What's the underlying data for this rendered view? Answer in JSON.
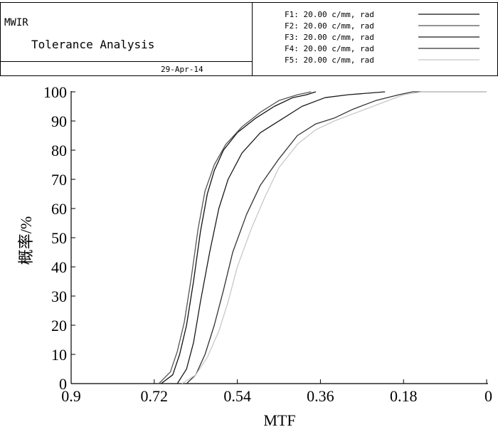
{
  "header": {
    "instrument": "MWIR",
    "title": "Tolerance Analysis",
    "date": "29-Apr-14"
  },
  "chart_data": {
    "type": "line",
    "xlabel": "MTF",
    "ylabel": "概率/%",
    "xlim": [
      0.9,
      0
    ],
    "ylim": [
      0,
      100
    ],
    "x_reversed": true,
    "x_ticks": [
      {
        "value": 0.9,
        "label": "0.9"
      },
      {
        "value": 0.72,
        "label": "0.72"
      },
      {
        "value": 0.54,
        "label": "0.54"
      },
      {
        "value": 0.36,
        "label": "0.36"
      },
      {
        "value": 0.18,
        "label": "0.18"
      },
      {
        "value": 0,
        "label": "0"
      }
    ],
    "y_ticks": [
      {
        "value": 0,
        "label": "0"
      },
      {
        "value": 10,
        "label": "10"
      },
      {
        "value": 20,
        "label": "20"
      },
      {
        "value": 30,
        "label": "30"
      },
      {
        "value": 40,
        "label": "40"
      },
      {
        "value": 50,
        "label": "50"
      },
      {
        "value": 60,
        "label": "60"
      },
      {
        "value": 70,
        "label": "70"
      },
      {
        "value": 80,
        "label": "80"
      },
      {
        "value": 90,
        "label": "90"
      },
      {
        "value": 100,
        "label": "100"
      }
    ],
    "grid": false,
    "legend_position": "top-right",
    "series": [
      {
        "name": "F1: 20.00 c/mm, rad",
        "color": "#111111",
        "points": [
          [
            0.705,
            0
          ],
          [
            0.68,
            3
          ],
          [
            0.665,
            10
          ],
          [
            0.65,
            20
          ],
          [
            0.635,
            35
          ],
          [
            0.62,
            52
          ],
          [
            0.605,
            65
          ],
          [
            0.59,
            73
          ],
          [
            0.57,
            80
          ],
          [
            0.54,
            86
          ],
          [
            0.5,
            91
          ],
          [
            0.46,
            95
          ],
          [
            0.42,
            98
          ],
          [
            0.39,
            99
          ],
          [
            0.37,
            100
          ]
        ]
      },
      {
        "name": "F2: 20.00 c/mm, rad",
        "color": "#555555",
        "points": [
          [
            0.71,
            0
          ],
          [
            0.685,
            4
          ],
          [
            0.67,
            11
          ],
          [
            0.655,
            21
          ],
          [
            0.64,
            36
          ],
          [
            0.625,
            53
          ],
          [
            0.61,
            66
          ],
          [
            0.59,
            75
          ],
          [
            0.565,
            82
          ],
          [
            0.53,
            88
          ],
          [
            0.49,
            93
          ],
          [
            0.45,
            97
          ],
          [
            0.41,
            99
          ],
          [
            0.38,
            100
          ]
        ]
      },
      {
        "name": "F3: 20.00 c/mm, rad",
        "color": "#1a1a1a",
        "points": [
          [
            0.67,
            0
          ],
          [
            0.65,
            5
          ],
          [
            0.635,
            14
          ],
          [
            0.62,
            28
          ],
          [
            0.6,
            45
          ],
          [
            0.58,
            60
          ],
          [
            0.56,
            70
          ],
          [
            0.53,
            79
          ],
          [
            0.49,
            86
          ],
          [
            0.44,
            91
          ],
          [
            0.4,
            95
          ],
          [
            0.35,
            98
          ],
          [
            0.3,
            99
          ],
          [
            0.22,
            100
          ]
        ]
      },
      {
        "name": "F4: 20.00 c/mm, rad",
        "color": "#333333",
        "points": [
          [
            0.65,
            0
          ],
          [
            0.63,
            3
          ],
          [
            0.61,
            10
          ],
          [
            0.59,
            20
          ],
          [
            0.57,
            32
          ],
          [
            0.55,
            45
          ],
          [
            0.52,
            58
          ],
          [
            0.49,
            68
          ],
          [
            0.45,
            77
          ],
          [
            0.41,
            85
          ],
          [
            0.37,
            89
          ],
          [
            0.33,
            91
          ],
          [
            0.29,
            94
          ],
          [
            0.24,
            97
          ],
          [
            0.19,
            99
          ],
          [
            0.16,
            100
          ],
          [
            0.0,
            100
          ]
        ]
      },
      {
        "name": "F5: 20.00 c/mm, rad",
        "color": "#c8c8c8",
        "points": [
          [
            0.66,
            0
          ],
          [
            0.63,
            3
          ],
          [
            0.605,
            9
          ],
          [
            0.58,
            18
          ],
          [
            0.56,
            28
          ],
          [
            0.54,
            40
          ],
          [
            0.51,
            53
          ],
          [
            0.48,
            64
          ],
          [
            0.45,
            74
          ],
          [
            0.41,
            82
          ],
          [
            0.37,
            87
          ],
          [
            0.33,
            90
          ],
          [
            0.28,
            93
          ],
          [
            0.23,
            96
          ],
          [
            0.18,
            99
          ],
          [
            0.14,
            100
          ],
          [
            0.0,
            100
          ]
        ]
      }
    ]
  }
}
